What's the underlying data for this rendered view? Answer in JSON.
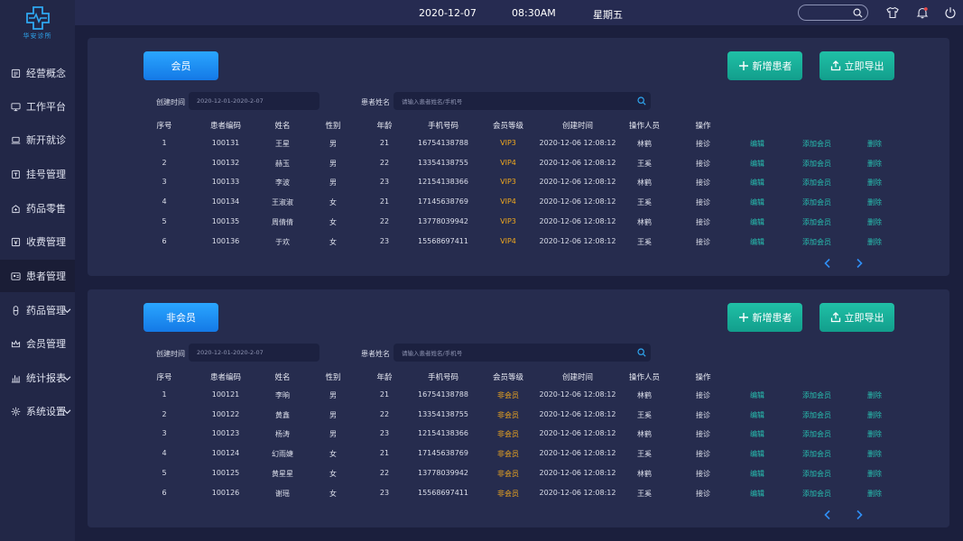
{
  "logo": {
    "text": "华安诊所"
  },
  "nav": [
    {
      "label": "经营概念",
      "icon": "report-icon",
      "arrow": false
    },
    {
      "label": "工作平台",
      "icon": "monitor-icon",
      "arrow": false
    },
    {
      "label": "新开就诊",
      "icon": "laptop-icon",
      "arrow": false
    },
    {
      "label": "挂号管理",
      "icon": "register-icon",
      "arrow": false
    },
    {
      "label": "药品零售",
      "icon": "pharmacy-icon",
      "arrow": false
    },
    {
      "label": "收费管理",
      "icon": "billing-icon",
      "arrow": false
    },
    {
      "label": "患者管理",
      "icon": "patient-card-icon",
      "arrow": false,
      "active": true
    },
    {
      "label": "药品管理",
      "icon": "pill-icon",
      "arrow": true
    },
    {
      "label": "会员管理",
      "icon": "crown-icon",
      "arrow": false
    },
    {
      "label": "统计报表",
      "icon": "bar-chart-icon",
      "arrow": true
    },
    {
      "label": "系统设置",
      "icon": "gear-icon",
      "arrow": true
    }
  ],
  "topbar": {
    "date": "2020-12-07",
    "time": "08:30AM",
    "weekday": "星期五",
    "search_placeholder": ""
  },
  "columns": [
    "序号",
    "患者编码",
    "姓名",
    "性别",
    "年龄",
    "手机号码",
    "会员等级",
    "创建时间",
    "操作人员",
    "操作"
  ],
  "actions": {
    "visit": "接诊",
    "edit": "编辑",
    "add_member": "添加会员",
    "delete": "删除"
  },
  "filters": {
    "date_label": "创建时间",
    "date_value": "2020-12-01-2020-2-07",
    "name_label": "患者姓名",
    "name_placeholder": "请输入患者姓名/手机号"
  },
  "buttons": {
    "add": "新增患者",
    "export": "立即导出"
  },
  "colors": {
    "accent": "#1f8ef5",
    "teal": "#1bb29c",
    "vip": "#f0a81e",
    "link": "#27c0b0"
  },
  "panels": [
    {
      "tab": "会员",
      "rows": [
        [
          "1",
          "100131",
          "王星",
          "男",
          "21",
          "16754138788",
          "VIP3",
          "2020-12-06 12:08:12",
          "林鹤"
        ],
        [
          "2",
          "100132",
          "赫玉",
          "男",
          "22",
          "13354138755",
          "VIP4",
          "2020-12-06 12:08:12",
          "王奚"
        ],
        [
          "3",
          "100133",
          "李波",
          "男",
          "23",
          "12154138366",
          "VIP3",
          "2020-12-06 12:08:12",
          "林鹤"
        ],
        [
          "4",
          "100134",
          "王淑淑",
          "女",
          "21",
          "17145638769",
          "VIP4",
          "2020-12-06 12:08:12",
          "王奚"
        ],
        [
          "5",
          "100135",
          "周倩倩",
          "女",
          "22",
          "13778039942",
          "VIP3",
          "2020-12-06 12:08:12",
          "林鹤"
        ],
        [
          "6",
          "100136",
          "于欢",
          "女",
          "23",
          "15568697411",
          "VIP4",
          "2020-12-06 12:08:12",
          "王奚"
        ]
      ]
    },
    {
      "tab": "非会员",
      "rows": [
        [
          "1",
          "100121",
          "李晌",
          "男",
          "21",
          "16754138788",
          "非会员",
          "2020-12-06 12:08:12",
          "林鹤"
        ],
        [
          "2",
          "100122",
          "黄鑫",
          "男",
          "22",
          "13354138755",
          "非会员",
          "2020-12-06 12:08:12",
          "王奚"
        ],
        [
          "3",
          "100123",
          "杨涛",
          "男",
          "23",
          "12154138366",
          "非会员",
          "2020-12-06 12:08:12",
          "林鹤"
        ],
        [
          "4",
          "100124",
          "幻雨婕",
          "女",
          "21",
          "17145638769",
          "非会员",
          "2020-12-06 12:08:12",
          "王奚"
        ],
        [
          "5",
          "100125",
          "黄星星",
          "女",
          "22",
          "13778039942",
          "非会员",
          "2020-12-06 12:08:12",
          "林鹤"
        ],
        [
          "6",
          "100126",
          "谢瑶",
          "女",
          "23",
          "15568697411",
          "非会员",
          "2020-12-06 12:08:12",
          "王奚"
        ]
      ]
    }
  ]
}
